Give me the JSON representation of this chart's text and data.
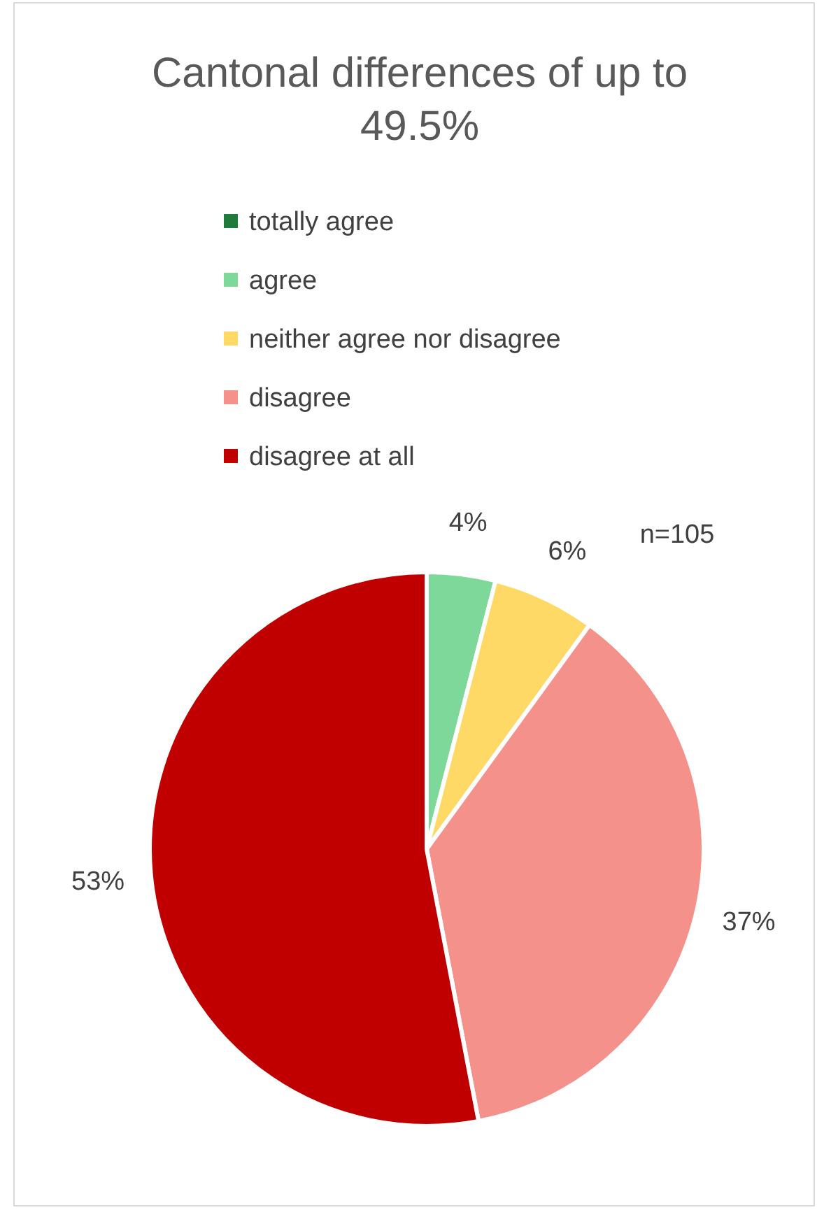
{
  "chart_data": {
    "type": "pie",
    "title": "Cantonal differences of up to 49.5%",
    "categories": [
      "totally agree",
      "agree",
      "neither agree nor disagree",
      "disagree",
      "disagree at all"
    ],
    "values": [
      0,
      4,
      6,
      37,
      53
    ],
    "value_labels": [
      null,
      "4%",
      "6%",
      "37%",
      "53%"
    ],
    "colors": [
      "#1e7b3a",
      "#7dd89a",
      "#ffd966",
      "#f4918a",
      "#c00000"
    ],
    "legend": "top",
    "annotations": [
      "n=105"
    ]
  }
}
